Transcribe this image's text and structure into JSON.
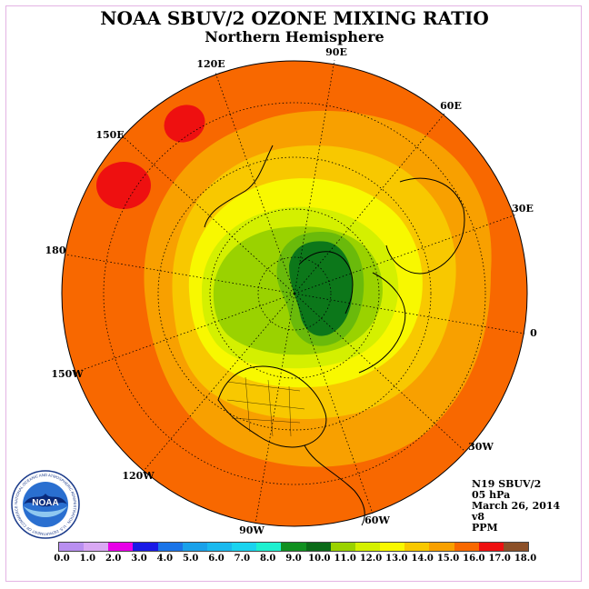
{
  "title": "NOAA SBUV/2 OZONE MIXING RATIO",
  "subtitle": "Northern Hemisphere",
  "info": {
    "instrument": "N19 SBUV/2",
    "level": "05 hPa",
    "date": "March 26, 2014",
    "version": "v8",
    "units": "PPM"
  },
  "lon_labels": {
    "l90e": "90E",
    "l60e": "60E",
    "l30e": "30E",
    "l0": "0",
    "l30w": "30W",
    "l60w": "60W",
    "l90w": "90W",
    "l120w": "120W",
    "l150w": "150W",
    "l180": "180",
    "l150e": "150E",
    "l120e": "120E"
  },
  "colorbar": {
    "colors": [
      "#b98ff0",
      "#d9a8f3",
      "#e800e8",
      "#1a1ae6",
      "#1a74e8",
      "#19a1ea",
      "#1ab9ee",
      "#1ad3ef",
      "#1ef0d0",
      "#109020",
      "#0a6a18",
      "#9ad200",
      "#d4f000",
      "#f8f800",
      "#f8c800",
      "#f8a000",
      "#f86800",
      "#ee1010",
      "#8c5028"
    ],
    "labels": [
      "0.0",
      "1.0",
      "2.0",
      "3.0",
      "4.0",
      "5.0",
      "6.0",
      "7.0",
      "8.0",
      "9.0",
      "10.0",
      "11.0",
      "12.0",
      "13.0",
      "14.0",
      "15.0",
      "16.0",
      "17.0",
      "18.0"
    ]
  },
  "logo": {
    "text": "NOAA",
    "ring_text": "NATIONAL OCEANIC AND ATMOSPHERIC ADMINISTRATION · U.S. DEPARTMENT OF COMMERCE"
  }
}
